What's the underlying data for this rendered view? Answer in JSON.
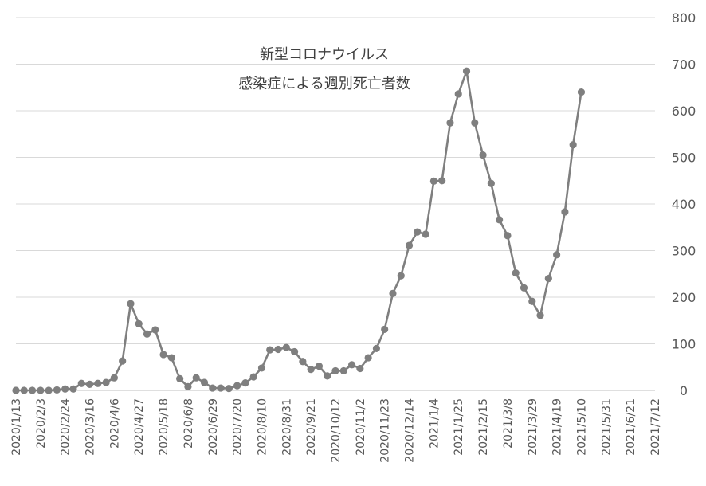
{
  "chart_data": {
    "type": "line",
    "title": "新型コロナウイルス",
    "subtitle": "感染症による週別死亡者数",
    "xlabel": "",
    "ylabel": "",
    "ylim": [
      0,
      800
    ],
    "y_ticks": [
      0,
      100,
      200,
      300,
      400,
      500,
      600,
      700,
      800
    ],
    "y_axis_side": "right",
    "grid": true,
    "legend": "none",
    "line_color": "#7f7f7f",
    "x_tick_labels": [
      "2020/1/13",
      "2020/2/3",
      "2020/2/24",
      "2020/3/16",
      "2020/4/6",
      "2020/4/27",
      "2020/5/18",
      "2020/6/8",
      "2020/6/29",
      "2020/7/20",
      "2020/8/10",
      "2020/8/31",
      "2020/9/21",
      "2020/10/12",
      "2020/11/2",
      "2020/11/23",
      "2020/12/14",
      "2021/1/4",
      "2021/1/25",
      "2021/2/15",
      "2021/3/8",
      "2021/3/29",
      "2021/4/19",
      "2021/5/10",
      "2021/5/31",
      "2021/6/21",
      "2021/7/12"
    ],
    "x": [
      "2020/1/13",
      "2020/1/20",
      "2020/1/27",
      "2020/2/3",
      "2020/2/10",
      "2020/2/17",
      "2020/2/24",
      "2020/3/2",
      "2020/3/9",
      "2020/3/16",
      "2020/3/23",
      "2020/3/30",
      "2020/4/6",
      "2020/4/13",
      "2020/4/20",
      "2020/4/27",
      "2020/5/4",
      "2020/5/11",
      "2020/5/18",
      "2020/5/25",
      "2020/6/1",
      "2020/6/8",
      "2020/6/15",
      "2020/6/22",
      "2020/6/29",
      "2020/7/6",
      "2020/7/13",
      "2020/7/20",
      "2020/7/27",
      "2020/8/3",
      "2020/8/10",
      "2020/8/17",
      "2020/8/24",
      "2020/8/31",
      "2020/9/7",
      "2020/9/14",
      "2020/9/21",
      "2020/9/28",
      "2020/10/5",
      "2020/10/12",
      "2020/10/19",
      "2020/10/26",
      "2020/11/2",
      "2020/11/9",
      "2020/11/16",
      "2020/11/23",
      "2020/11/30",
      "2020/12/7",
      "2020/12/14",
      "2020/12/21",
      "2020/12/28",
      "2021/1/4",
      "2021/1/11",
      "2021/1/18",
      "2021/1/25",
      "2021/2/1",
      "2021/2/8",
      "2021/2/15",
      "2021/2/22",
      "2021/3/1",
      "2021/3/8",
      "2021/3/15",
      "2021/3/22",
      "2021/3/29",
      "2021/4/5",
      "2021/4/12",
      "2021/4/19",
      "2021/4/26",
      "2021/5/3",
      "2021/5/10"
    ],
    "series": [
      {
        "values": [
          0,
          0,
          0,
          0,
          0,
          1,
          3,
          3,
          15,
          13,
          15,
          17,
          27,
          63,
          186,
          143,
          121,
          130,
          77,
          70,
          25,
          8,
          27,
          17,
          5,
          5,
          4,
          10,
          16,
          29,
          48,
          87,
          88,
          92,
          83,
          62,
          45,
          52,
          31,
          42,
          42,
          55,
          47,
          70,
          90,
          131,
          208,
          246,
          311,
          340,
          335,
          449,
          450,
          574,
          636,
          685,
          574,
          505,
          444,
          366,
          332,
          252,
          220,
          191,
          161,
          240,
          291,
          383,
          527,
          640
        ]
      }
    ]
  }
}
